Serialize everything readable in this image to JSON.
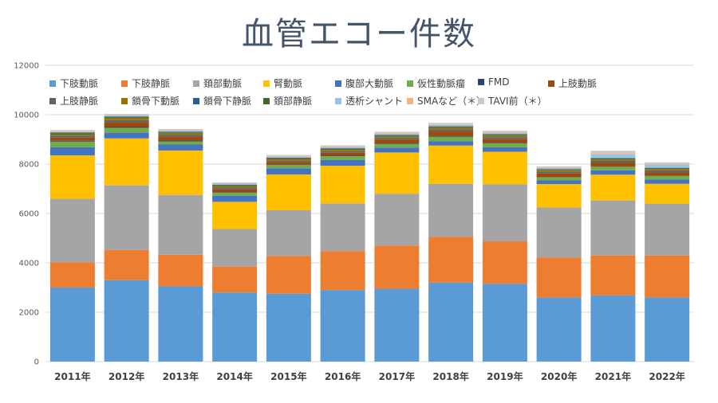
{
  "title": "血管エコー件数",
  "chart_data": {
    "type": "bar",
    "stacked": true,
    "title": "血管エコー件数",
    "categories": [
      "2011年",
      "2012年",
      "2013年",
      "2014年",
      "2015年",
      "2016年",
      "2017年",
      "2018年",
      "2019年",
      "2020年",
      "2021年",
      "2022年"
    ],
    "ylim": [
      0,
      12000
    ],
    "yticks": [
      "0",
      "2000",
      "4000",
      "6000",
      "8000",
      "10000",
      "12000"
    ],
    "grid": true,
    "legend": "top",
    "series": [
      {
        "name": "下肢動脈",
        "color": "#5b9bd5",
        "values": [
          3000,
          3300,
          3050,
          2800,
          2750,
          2900,
          2950,
          3200,
          3150,
          2600,
          2680,
          2600
        ]
      },
      {
        "name": "下肢静脈",
        "color": "#ed7d31",
        "values": [
          1020,
          1220,
          1280,
          1050,
          1530,
          1580,
          1750,
          1850,
          1720,
          1620,
          1620,
          1700
        ]
      },
      {
        "name": "頚部動脈",
        "color": "#a5a5a5",
        "values": [
          2580,
          2620,
          2420,
          1520,
          1850,
          1930,
          2100,
          2150,
          2310,
          2020,
          2230,
          2100
        ]
      },
      {
        "name": "腎動脈",
        "color": "#ffc000",
        "values": [
          1750,
          1900,
          1800,
          1100,
          1450,
          1520,
          1670,
          1550,
          1320,
          950,
          1040,
          800
        ]
      },
      {
        "name": "腹部大動脈",
        "color": "#4472c4",
        "values": [
          330,
          230,
          240,
          250,
          250,
          240,
          200,
          180,
          180,
          150,
          180,
          180
        ]
      },
      {
        "name": "仮性動脈瘤",
        "color": "#70ad47",
        "values": [
          230,
          200,
          130,
          120,
          130,
          150,
          150,
          180,
          160,
          120,
          140,
          140
        ]
      },
      {
        "name": "FMD",
        "color": "#264478",
        "values": [
          30,
          30,
          30,
          20,
          20,
          20,
          20,
          20,
          20,
          10,
          10,
          10
        ]
      },
      {
        "name": "上肢動脈",
        "color": "#9e480e",
        "values": [
          130,
          180,
          150,
          120,
          110,
          120,
          150,
          190,
          150,
          150,
          150,
          130
        ]
      },
      {
        "name": "上肢静脈",
        "color": "#636363",
        "values": [
          80,
          100,
          90,
          70,
          60,
          60,
          70,
          80,
          80,
          70,
          80,
          80
        ]
      },
      {
        "name": "鎖骨下動脈",
        "color": "#997300",
        "values": [
          60,
          90,
          70,
          60,
          60,
          60,
          60,
          70,
          60,
          60,
          60,
          60
        ]
      },
      {
        "name": "鎖骨下静脈",
        "color": "#255e91",
        "values": [
          20,
          20,
          20,
          20,
          20,
          20,
          20,
          20,
          20,
          20,
          20,
          20
        ]
      },
      {
        "name": "頚部静脈",
        "color": "#43682b",
        "values": [
          50,
          30,
          30,
          30,
          30,
          40,
          40,
          40,
          40,
          30,
          30,
          30
        ]
      },
      {
        "name": "透析シャント",
        "color": "#9dc3e6",
        "values": [
          30,
          50,
          50,
          50,
          40,
          50,
          50,
          60,
          60,
          40,
          150,
          140
        ]
      },
      {
        "name": "SMAなど（＊）",
        "color": "#f4b183",
        "values": [
          20,
          20,
          20,
          20,
          30,
          30,
          30,
          30,
          30,
          30,
          30,
          30
        ]
      },
      {
        "name": "TAVI前（＊）",
        "color": "#c9c9c9",
        "values": [
          50,
          40,
          40,
          30,
          40,
          40,
          50,
          50,
          50,
          30,
          120,
          50
        ]
      }
    ]
  }
}
